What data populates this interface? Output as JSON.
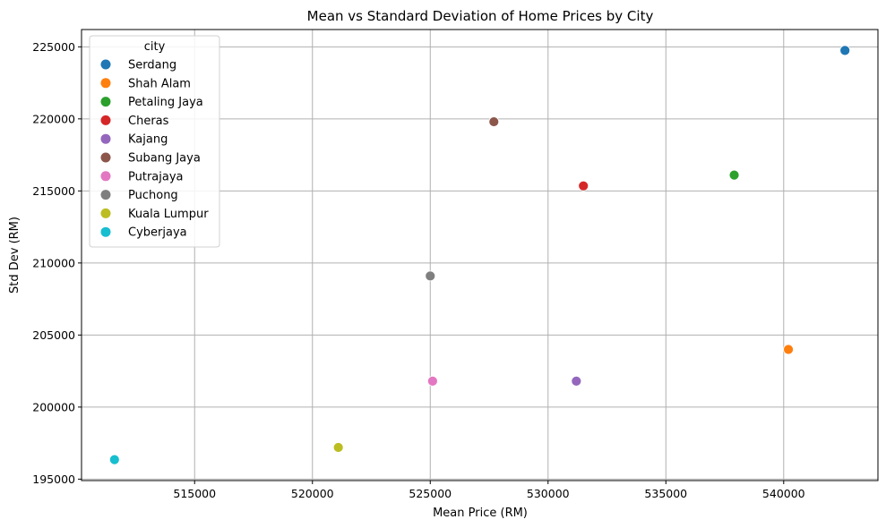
{
  "chart_data": {
    "type": "scatter",
    "title": "Mean vs Standard Deviation of Home Prices by City",
    "xlabel": "Mean Price (RM)",
    "ylabel": "Std Dev (RM)",
    "xlim": [
      510200,
      544000
    ],
    "ylim": [
      194900,
      226200
    ],
    "xticks": [
      515000,
      520000,
      525000,
      530000,
      535000,
      540000
    ],
    "yticks": [
      195000,
      200000,
      205000,
      210000,
      215000,
      220000,
      225000
    ],
    "grid": true,
    "legend": {
      "title": "city",
      "placement": "top-left"
    },
    "series": [
      {
        "name": "Serdang",
        "color": "#1f77b4",
        "x": 542600,
        "y": 224750
      },
      {
        "name": "Shah Alam",
        "color": "#ff7f0e",
        "x": 540200,
        "y": 204000
      },
      {
        "name": "Petaling Jaya",
        "color": "#2ca02c",
        "x": 537900,
        "y": 216100
      },
      {
        "name": "Cheras",
        "color": "#d62728",
        "x": 531500,
        "y": 215350
      },
      {
        "name": "Kajang",
        "color": "#9467bd",
        "x": 531200,
        "y": 201800
      },
      {
        "name": "Subang Jaya",
        "color": "#8c564b",
        "x": 527700,
        "y": 219800
      },
      {
        "name": "Putrajaya",
        "color": "#e377c2",
        "x": 525100,
        "y": 201800
      },
      {
        "name": "Puchong",
        "color": "#7f7f7f",
        "x": 525000,
        "y": 209100
      },
      {
        "name": "Kuala Lumpur",
        "color": "#bcbd22",
        "x": 521100,
        "y": 197200
      },
      {
        "name": "Cyberjaya",
        "color": "#17becf",
        "x": 511600,
        "y": 196350
      }
    ]
  }
}
